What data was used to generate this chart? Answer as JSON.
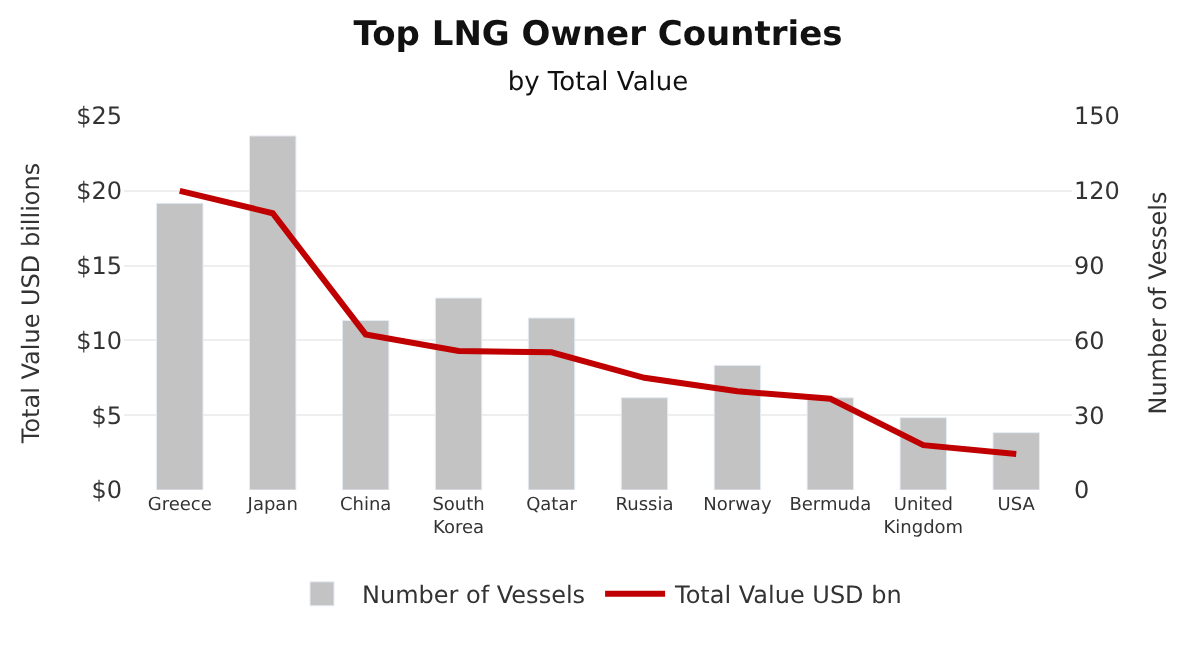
{
  "chart_data": {
    "type": "bar",
    "title": "Top LNG Owner Countries",
    "subtitle": "by Total Value",
    "ylabel": "Total Value USD billions",
    "y2label": "Number of Vessels",
    "categories": [
      "Greece",
      "Japan",
      "China",
      "South Korea",
      "Qatar",
      "Russia",
      "Norway",
      "Bermuda",
      "United Kingdom",
      "USA"
    ],
    "series": [
      {
        "name": "Number of Vessels",
        "color": "#c3c3c3",
        "axis": "y2",
        "values": [
          115,
          142,
          68,
          77,
          69,
          37,
          50,
          37,
          29,
          23
        ]
      },
      {
        "name": "Total Value USD bn",
        "color": "#c00000",
        "type": "line",
        "values": [
          20.0,
          18.5,
          10.4,
          9.3,
          9.2,
          7.5,
          6.6,
          6.1,
          3.0,
          2.4
        ]
      }
    ],
    "ylim": [
      0,
      25
    ],
    "yticks": [
      {
        "value": 0,
        "label": "$0"
      },
      {
        "value": 5,
        "label": "$5"
      },
      {
        "value": 10,
        "label": "$10"
      },
      {
        "value": 15,
        "label": "$15"
      },
      {
        "value": 20,
        "label": "$20"
      },
      {
        "value": 25,
        "label": "$25"
      }
    ],
    "y2lim": [
      0,
      150
    ],
    "y2ticks": [
      0,
      30,
      60,
      90,
      120,
      150
    ],
    "grid": "y",
    "legend": "bottom",
    "marker": "none"
  }
}
